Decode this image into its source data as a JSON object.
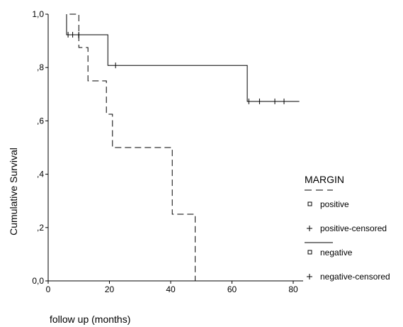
{
  "chart_data": {
    "type": "line",
    "subtype": "kaplan-meier survival curve",
    "xlabel": "follow up (months)",
    "ylabel": "Cumulative Survival",
    "xlim": [
      0,
      80
    ],
    "ylim": [
      0,
      1
    ],
    "x_ticks": [
      {
        "value": 0,
        "label": "0"
      },
      {
        "value": 20,
        "label": "20"
      },
      {
        "value": 40,
        "label": "40"
      },
      {
        "value": 60,
        "label": "60"
      },
      {
        "value": 80,
        "label": "80"
      }
    ],
    "y_ticks": [
      {
        "value": 0,
        "label": "0,0"
      },
      {
        "value": 0.2,
        "label": ",2"
      },
      {
        "value": 0.4,
        "label": ",4"
      },
      {
        "value": 0.6,
        "label": ",6"
      },
      {
        "value": 0.8,
        "label": ",8"
      },
      {
        "value": 1.0,
        "label": "1,0"
      }
    ],
    "grid": false,
    "legend": {
      "title": "MARGIN",
      "placement": "right",
      "items": [
        {
          "marker": "dashed-line",
          "label": ""
        },
        {
          "marker": "square",
          "label": "positive"
        },
        {
          "marker": "plus",
          "label": "positive-censored"
        },
        {
          "marker": "solid-line",
          "label": ""
        },
        {
          "marker": "square",
          "label": "negative"
        },
        {
          "marker": "plus",
          "label": "negative-censored"
        }
      ]
    },
    "series": [
      {
        "name": "positive",
        "line_style": "dashed",
        "steps": [
          [
            7,
            1.0
          ],
          [
            10,
            1.0
          ],
          [
            10,
            0.875
          ],
          [
            13,
            0.875
          ],
          [
            13,
            0.75
          ],
          [
            19,
            0.75
          ],
          [
            19,
            0.625
          ],
          [
            21,
            0.625
          ],
          [
            21,
            0.5
          ],
          [
            40.5,
            0.5
          ],
          [
            40.5,
            0.25
          ],
          [
            48,
            0.25
          ],
          [
            48,
            0.0
          ]
        ],
        "censored": [
          [
            10,
            0.92
          ]
        ]
      },
      {
        "name": "negative",
        "line_style": "solid",
        "steps": [
          [
            6,
            1.0
          ],
          [
            6,
            0.923
          ],
          [
            19.5,
            0.923
          ],
          [
            19.5,
            0.808
          ],
          [
            65,
            0.808
          ],
          [
            65,
            0.673
          ],
          [
            82,
            0.673
          ]
        ],
        "censored": [
          [
            6.5,
            0.923
          ],
          [
            8,
            0.923
          ],
          [
            10,
            0.923
          ],
          [
            22,
            0.808
          ],
          [
            65.5,
            0.673
          ],
          [
            69,
            0.673
          ],
          [
            74,
            0.673
          ],
          [
            77,
            0.673
          ]
        ]
      }
    ]
  }
}
